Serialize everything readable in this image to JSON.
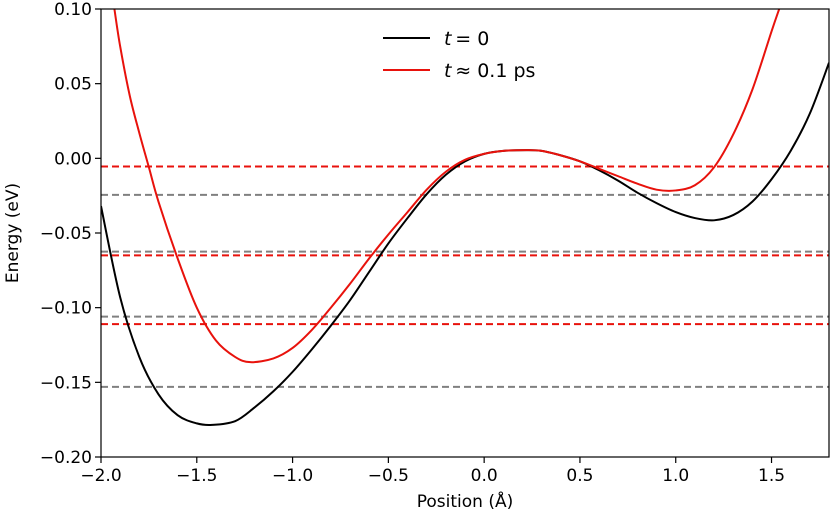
{
  "chart_data": {
    "type": "line",
    "xlabel": "Position (Å)",
    "ylabel": "Energy (eV)",
    "xlim": [
      -2.0,
      1.8
    ],
    "ylim": [
      -0.2,
      0.1
    ],
    "x_ticks": [
      "−2.0",
      "−1.5",
      "−1.0",
      "−0.5",
      "0.0",
      "0.5",
      "1.0",
      "1.5"
    ],
    "y_ticks": [
      "−0.20",
      "−0.15",
      "−0.10",
      "−0.05",
      "0.00",
      "0.05",
      "0.10"
    ],
    "grid": false,
    "legend_position": "top-center",
    "series": [
      {
        "name": "t = 0",
        "legend_var": "t",
        "legend_rel": "= 0",
        "color": "#000000",
        "style": "solid",
        "points": [
          [
            -2.0,
            -0.032
          ],
          [
            -1.9,
            -0.093
          ],
          [
            -1.8,
            -0.133
          ],
          [
            -1.7,
            -0.158
          ],
          [
            -1.6,
            -0.172
          ],
          [
            -1.5,
            -0.1775
          ],
          [
            -1.42,
            -0.1785
          ],
          [
            -1.3,
            -0.176
          ],
          [
            -1.2,
            -0.167
          ],
          [
            -1.1,
            -0.156
          ],
          [
            -1.0,
            -0.143
          ],
          [
            -0.9,
            -0.128
          ],
          [
            -0.8,
            -0.112
          ],
          [
            -0.7,
            -0.095
          ],
          [
            -0.6,
            -0.076
          ],
          [
            -0.5,
            -0.057
          ],
          [
            -0.4,
            -0.04
          ],
          [
            -0.3,
            -0.024
          ],
          [
            -0.2,
            -0.011
          ],
          [
            -0.1,
            -0.002
          ],
          [
            0.0,
            0.003
          ],
          [
            0.1,
            0.005
          ],
          [
            0.22,
            0.0055
          ],
          [
            0.3,
            0.005
          ],
          [
            0.4,
            0.002
          ],
          [
            0.5,
            -0.002
          ],
          [
            0.6,
            -0.008
          ],
          [
            0.7,
            -0.015
          ],
          [
            0.8,
            -0.023
          ],
          [
            0.9,
            -0.03
          ],
          [
            1.0,
            -0.036
          ],
          [
            1.1,
            -0.04
          ],
          [
            1.2,
            -0.0415
          ],
          [
            1.3,
            -0.038
          ],
          [
            1.4,
            -0.029
          ],
          [
            1.5,
            -0.014
          ],
          [
            1.6,
            0.005
          ],
          [
            1.7,
            0.03
          ],
          [
            1.8,
            0.064
          ]
        ]
      },
      {
        "name": "t ≈ 0.1 ps",
        "legend_var": "t",
        "legend_rel": "≈ 0.1 ps",
        "color": "#e8120c",
        "style": "solid",
        "points": [
          [
            -1.93,
            0.1
          ],
          [
            -1.9,
            0.075
          ],
          [
            -1.85,
            0.042
          ],
          [
            -1.8,
            0.017
          ],
          [
            -1.75,
            -0.006
          ],
          [
            -1.7,
            -0.029
          ],
          [
            -1.6,
            -0.067
          ],
          [
            -1.5,
            -0.1
          ],
          [
            -1.4,
            -0.122
          ],
          [
            -1.3,
            -0.133
          ],
          [
            -1.22,
            -0.1365
          ],
          [
            -1.1,
            -0.134
          ],
          [
            -1.0,
            -0.127
          ],
          [
            -0.9,
            -0.115
          ],
          [
            -0.8,
            -0.1
          ],
          [
            -0.7,
            -0.084
          ],
          [
            -0.6,
            -0.067
          ],
          [
            -0.5,
            -0.051
          ],
          [
            -0.4,
            -0.036
          ],
          [
            -0.3,
            -0.021
          ],
          [
            -0.2,
            -0.009
          ],
          [
            -0.1,
            -0.001
          ],
          [
            0.0,
            0.003
          ],
          [
            0.1,
            0.005
          ],
          [
            0.22,
            0.0055
          ],
          [
            0.3,
            0.005
          ],
          [
            0.4,
            0.002
          ],
          [
            0.5,
            -0.002
          ],
          [
            0.6,
            -0.007
          ],
          [
            0.7,
            -0.012
          ],
          [
            0.8,
            -0.017
          ],
          [
            0.9,
            -0.021
          ],
          [
            1.0,
            -0.0215
          ],
          [
            1.1,
            -0.018
          ],
          [
            1.2,
            -0.006
          ],
          [
            1.3,
            0.016
          ],
          [
            1.4,
            0.046
          ],
          [
            1.5,
            0.085
          ],
          [
            1.54,
            0.1
          ]
        ]
      }
    ],
    "hlines": [
      {
        "y": -0.0055,
        "color": "#e8120c",
        "style": "dashed"
      },
      {
        "y": -0.0245,
        "color": "#808080",
        "style": "dashed"
      },
      {
        "y": -0.0625,
        "color": "#808080",
        "style": "dashed"
      },
      {
        "y": -0.065,
        "color": "#e8120c",
        "style": "dashed"
      },
      {
        "y": -0.106,
        "color": "#808080",
        "style": "dashed"
      },
      {
        "y": -0.111,
        "color": "#e8120c",
        "style": "dashed"
      },
      {
        "y": -0.153,
        "color": "#808080",
        "style": "dashed"
      }
    ]
  }
}
